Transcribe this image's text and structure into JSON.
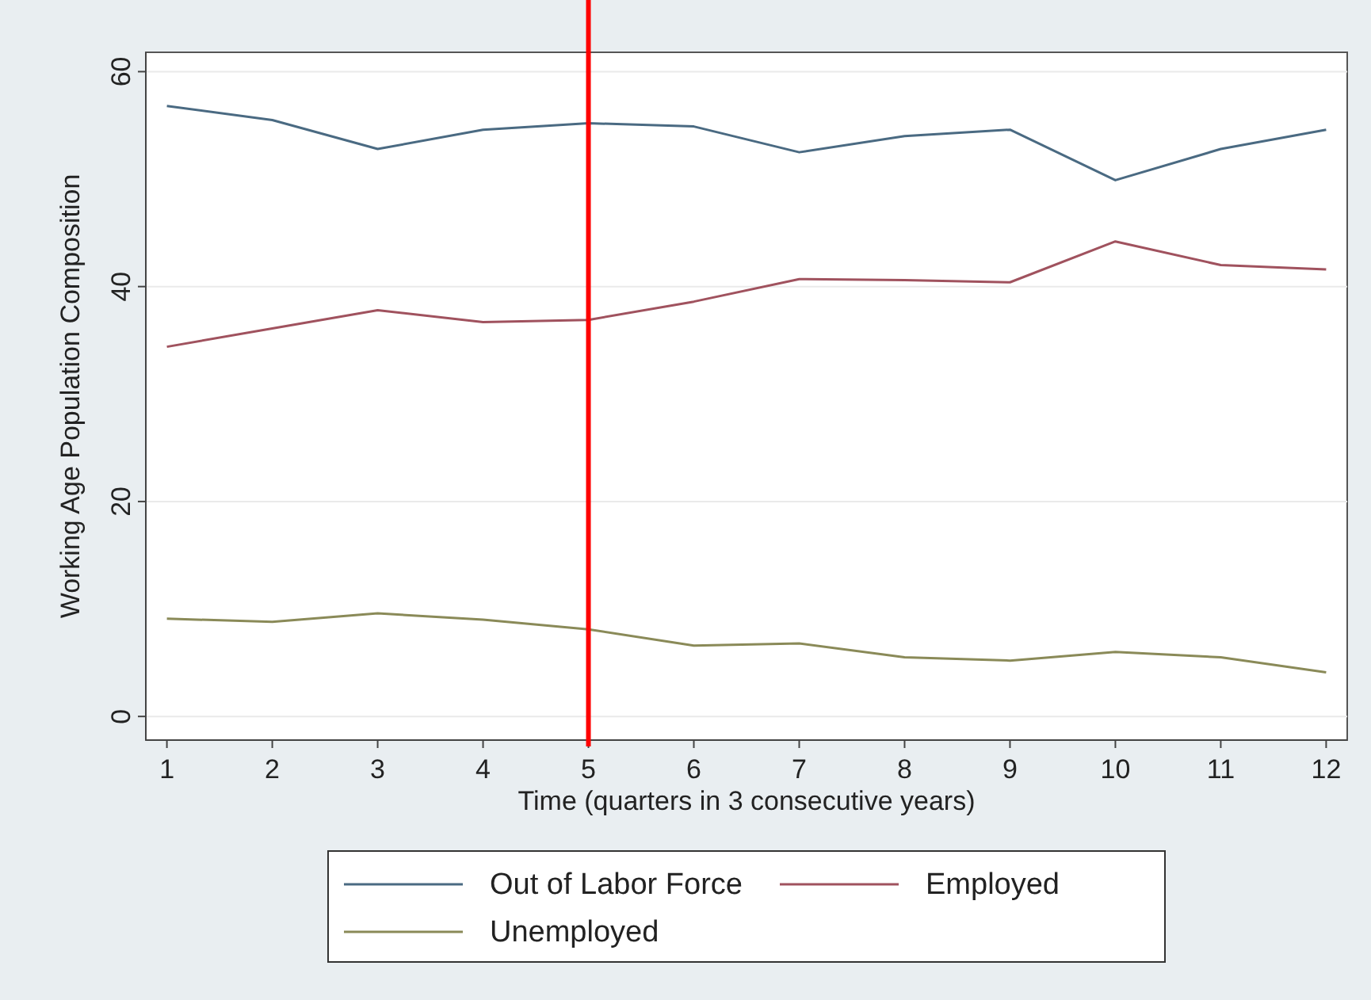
{
  "chart_data": {
    "type": "line",
    "xlabel": "Time (quarters in 3 consecutive years)",
    "ylabel": "Working Age Population Composition",
    "x": [
      1,
      2,
      3,
      4,
      5,
      6,
      7,
      8,
      9,
      10,
      11,
      12
    ],
    "xlim": [
      0.8,
      12.2
    ],
    "xticks": [
      1,
      2,
      3,
      4,
      5,
      6,
      7,
      8,
      9,
      10,
      11,
      12
    ],
    "ylim": [
      -2.2,
      61.8
    ],
    "yticks": [
      0,
      20,
      40,
      60
    ],
    "grid": "y",
    "legend": "bottom",
    "series": [
      {
        "name": "Out of Labor Force",
        "color": "#4a6a82",
        "values": [
          56.8,
          55.5,
          52.8,
          54.6,
          55.2,
          54.9,
          52.5,
          54,
          54.6,
          49.9,
          52.8,
          54.6
        ]
      },
      {
        "name": "Employed",
        "color": "#a0525e",
        "values": [
          34.4,
          36.1,
          37.8,
          36.7,
          36.9,
          38.6,
          40.7,
          40.6,
          40.4,
          44.2,
          42,
          41.6
        ]
      },
      {
        "name": "Unemployed",
        "color": "#8a8a58",
        "values": [
          9.1,
          8.8,
          9.6,
          9,
          8.1,
          6.6,
          6.8,
          5.5,
          5.2,
          6,
          5.5,
          4.1
        ]
      }
    ],
    "ref_lines": [
      {
        "axis": "x",
        "value": 5,
        "color": "#ff0000"
      }
    ]
  }
}
